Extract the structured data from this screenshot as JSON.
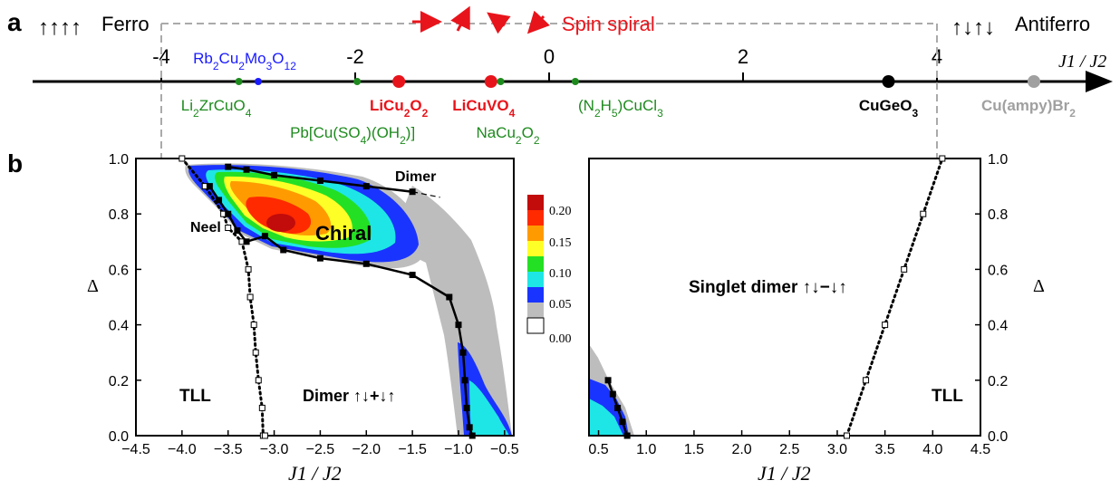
{
  "colors": {
    "red": "#e8141b",
    "green": "#1e8a1e",
    "blue": "#1a1aff",
    "black": "#000000",
    "grey": "#a0a0a0",
    "scale": [
      "#c20b0b",
      "#ff2a00",
      "#ff9b00",
      "#ffff28",
      "#24e024",
      "#1ee6e6",
      "#1a34ff",
      "#bdbdbd",
      "#ffffff"
    ]
  },
  "panel_a": {
    "label": "a",
    "ferro_arrows": "↑↑↑↑",
    "ferro_label": "Ferro",
    "antiferro_arrows": "↑↓↑↓",
    "antiferro_label": "Antiferro",
    "spiral_label": "Spin spiral",
    "axis_label": "J1 / J2",
    "axis_min": -5,
    "axis_max": 9,
    "ticks": [
      -4,
      -2,
      0,
      2,
      4
    ],
    "compounds": [
      {
        "name": "Rb2Cu2Mo3O12",
        "j": -3.0,
        "color": "blue",
        "marker": "small",
        "side": "above"
      },
      {
        "name": "Li2ZrCuO4",
        "j": -3.2,
        "color": "green",
        "marker": "small",
        "side": "below"
      },
      {
        "name": "Pb[Cu(SO4)(OH2)]",
        "j": -1.98,
        "color": "green",
        "marker": "small",
        "side": "below2"
      },
      {
        "name": "LiCu2O2",
        "j": -1.55,
        "color": "red",
        "marker": "large",
        "side": "below"
      },
      {
        "name": "LiCuVO4",
        "j": -0.6,
        "color": "red",
        "marker": "large",
        "side": "below"
      },
      {
        "name": "NaCu2O2",
        "j": -0.5,
        "color": "green",
        "marker": "small",
        "side": "below2"
      },
      {
        "name": "(N2H5)CuCl3",
        "j": 0.27,
        "color": "green",
        "marker": "small",
        "side": "below"
      },
      {
        "name": "CuGeO3",
        "j": 3.5,
        "color": "black",
        "marker": "large",
        "side": "below"
      },
      {
        "name": "Cu(ampy)Br2",
        "j": 5.0,
        "color": "grey",
        "marker": "large",
        "side": "below"
      }
    ]
  },
  "panel_b": {
    "label": "b",
    "colorbar_ticks": [
      "0.20",
      "0.15",
      "0.10",
      "0.05",
      "0.00"
    ],
    "left": {
      "xlabel": "J1 / J2",
      "ylabel": "Δ",
      "xlim": [
        -4.5,
        -0.4
      ],
      "ylim": [
        0,
        1
      ],
      "xticks": [
        "-4.5",
        "-4.0",
        "-3.5",
        "-3.0",
        "-2.5",
        "-2.0",
        "-1.5",
        "-1.0",
        "-0.5"
      ],
      "yticks": [
        "0.0",
        "0.2",
        "0.4",
        "0.6",
        "0.8",
        "1.0"
      ],
      "regions": {
        "tll": "TLL",
        "dimer": "Dimer",
        "dimer_state": "Dimer ↑↓+↓↑",
        "neel": "Neel",
        "chiral": "Chiral"
      }
    },
    "right": {
      "xlabel": "J1 / J2",
      "ylabel": "Δ",
      "xlim": [
        0.4,
        4.5
      ],
      "ylim": [
        0,
        1
      ],
      "xticks": [
        "0.5",
        "1.0",
        "1.5",
        "2.0",
        "2.5",
        "3.0",
        "3.5",
        "4.0",
        "4.5"
      ],
      "yticks": [
        "0.0",
        "0.2",
        "0.4",
        "0.6",
        "0.8",
        "1.0"
      ],
      "regions": {
        "singlet": "Singlet dimer ↑↓−↓↑",
        "tll": "TLL"
      }
    }
  },
  "chart_data": [
    {
      "type": "scatter",
      "xlabel": "J1 / J2",
      "series": [
        {
          "name": "Rb2Cu2Mo3O12",
          "x": [
            -3.0
          ]
        },
        {
          "name": "Li2ZrCuO4",
          "x": [
            -3.2
          ]
        },
        {
          "name": "Pb[Cu(SO4)(OH2)]",
          "x": [
            -1.98
          ]
        },
        {
          "name": "LiCu2O2",
          "x": [
            -1.55
          ]
        },
        {
          "name": "LiCuVO4",
          "x": [
            -0.6
          ]
        },
        {
          "name": "NaCu2O2",
          "x": [
            -0.5
          ]
        },
        {
          "name": "(N2H5)CuCl3",
          "x": [
            0.27
          ]
        },
        {
          "name": "CuGeO3",
          "x": [
            3.5
          ]
        },
        {
          "name": "Cu(ampy)Br2",
          "x": [
            5.0
          ]
        }
      ]
    },
    {
      "type": "line",
      "xlabel": "J1 / J2",
      "ylabel": "Δ",
      "xlim": [
        -4.5,
        -0.4
      ],
      "ylim": [
        0,
        1
      ],
      "series": [
        {
          "name": "TLL boundary (dotted)",
          "x": [
            -4.0,
            -3.75,
            -3.55,
            -3.5,
            -3.35,
            -3.28,
            -3.26,
            -3.22,
            -3.2,
            -3.17,
            -3.13,
            -3.12,
            -3.1
          ],
          "y": [
            1.0,
            0.9,
            0.8,
            0.75,
            0.7,
            0.6,
            0.5,
            0.4,
            0.3,
            0.2,
            0.1,
            0.0,
            0.0
          ]
        },
        {
          "name": "Chiral boundary",
          "x": [
            -3.7,
            -3.6,
            -3.5,
            -3.4,
            -3.3,
            -3.1,
            -2.9,
            -2.5,
            -2.0,
            -1.5,
            -1.1,
            -1.0,
            -0.95,
            -0.93,
            -0.91,
            -0.88,
            -0.85
          ],
          "y": [
            0.9,
            0.85,
            0.8,
            0.74,
            0.7,
            0.72,
            0.67,
            0.64,
            0.62,
            0.58,
            0.5,
            0.4,
            0.3,
            0.2,
            0.1,
            0.03,
            0.0
          ]
        },
        {
          "name": "Dimer boundary",
          "x": [
            -3.5,
            -3.3,
            -3.0,
            -2.5,
            -2.0,
            -1.5
          ],
          "y": [
            0.97,
            0.96,
            0.94,
            0.92,
            0.9,
            0.88
          ]
        }
      ]
    },
    {
      "type": "line",
      "xlabel": "J1 / J2",
      "ylabel": "Δ",
      "xlim": [
        0.4,
        4.5
      ],
      "ylim": [
        0,
        1
      ],
      "series": [
        {
          "name": "TLL boundary (dotted)",
          "x": [
            3.1,
            3.3,
            3.5,
            3.7,
            3.9,
            4.1
          ],
          "y": [
            0.0,
            0.2,
            0.4,
            0.6,
            0.8,
            1.0
          ]
        },
        {
          "name": "Dimer boundary",
          "x": [
            0.6,
            0.65,
            0.7,
            0.75,
            0.8
          ],
          "y": [
            0.2,
            0.15,
            0.1,
            0.05,
            0.0
          ]
        }
      ]
    }
  ]
}
